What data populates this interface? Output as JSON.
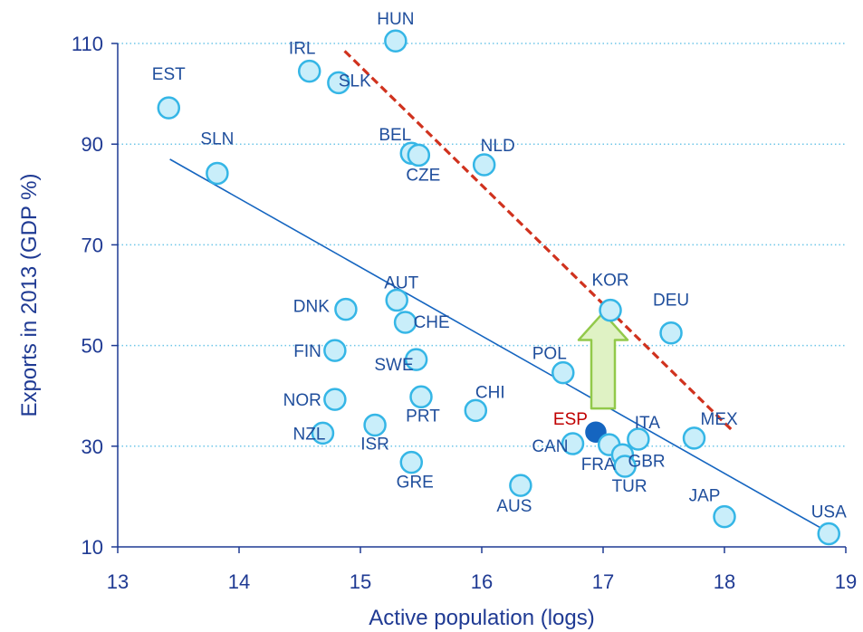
{
  "chart_data": {
    "type": "scatter",
    "xlabel": "Active population (logs)",
    "ylabel": "Exports in 2013 (GDP %)",
    "xlim": [
      13,
      19
    ],
    "ylim": [
      10,
      110
    ],
    "xticks": [
      13,
      14,
      15,
      16,
      17,
      18,
      19
    ],
    "yticks": [
      10,
      30,
      50,
      70,
      90,
      110
    ],
    "grid": "horizontal dotted",
    "colors": {
      "marker_fill": "#c9eefa",
      "marker_stroke": "#35b6e6",
      "highlight_fill": "#1565c0",
      "label": "#1f4e9c",
      "highlight_label": "#c00000",
      "axis_text": "#1f3a93",
      "trend_line": "#1565c0",
      "upper_line": "#d0321e",
      "arrow_fill": "#dff2c4",
      "arrow_stroke": "#92c94a",
      "grid": "#6ec6e8"
    },
    "points": [
      {
        "label": "HUN",
        "x": 15.29,
        "y": 110.5
      },
      {
        "label": "IRL",
        "x": 14.58,
        "y": 104.5
      },
      {
        "label": "SLK",
        "x": 14.82,
        "y": 102.2
      },
      {
        "label": "EST",
        "x": 13.42,
        "y": 97.2
      },
      {
        "label": "SLN",
        "x": 13.82,
        "y": 84.2
      },
      {
        "label": "BEL",
        "x": 15.42,
        "y": 88.2
      },
      {
        "label": "CZE",
        "x": 15.48,
        "y": 87.8
      },
      {
        "label": "NLD",
        "x": 16.02,
        "y": 85.9
      },
      {
        "label": "KOR",
        "x": 17.06,
        "y": 57.0
      },
      {
        "label": "DEU",
        "x": 17.56,
        "y": 52.5
      },
      {
        "label": "AUT",
        "x": 15.3,
        "y": 59.0
      },
      {
        "label": "DNK",
        "x": 14.88,
        "y": 57.2
      },
      {
        "label": "CHE",
        "x": 15.37,
        "y": 54.6
      },
      {
        "label": "FIN",
        "x": 14.79,
        "y": 49.0
      },
      {
        "label": "SWE",
        "x": 15.46,
        "y": 47.2
      },
      {
        "label": "POL",
        "x": 16.67,
        "y": 44.6
      },
      {
        "label": "NOR",
        "x": 14.79,
        "y": 39.3
      },
      {
        "label": "PRT",
        "x": 15.5,
        "y": 39.8
      },
      {
        "label": "CHI",
        "x": 15.95,
        "y": 37.1
      },
      {
        "label": "NZL",
        "x": 14.69,
        "y": 32.6
      },
      {
        "label": "ISR",
        "x": 15.12,
        "y": 34.2
      },
      {
        "label": "GRE",
        "x": 15.42,
        "y": 26.8
      },
      {
        "label": "ESP",
        "x": 16.94,
        "y": 32.8,
        "highlight": true
      },
      {
        "label": "CAN",
        "x": 16.75,
        "y": 30.5
      },
      {
        "label": "ITA",
        "x": 17.29,
        "y": 31.4
      },
      {
        "label": "FRA",
        "x": 17.05,
        "y": 30.3
      },
      {
        "label": "GBR",
        "x": 17.16,
        "y": 28.3
      },
      {
        "label": "TUR",
        "x": 17.18,
        "y": 26.0
      },
      {
        "label": "MEX",
        "x": 17.75,
        "y": 31.6
      },
      {
        "label": "AUS",
        "x": 16.32,
        "y": 22.2
      },
      {
        "label": "JAP",
        "x": 18.0,
        "y": 16.0
      },
      {
        "label": "USA",
        "x": 18.86,
        "y": 12.6
      }
    ],
    "trend_line": {
      "x": [
        13.43,
        18.85
      ],
      "y": [
        87.0,
        13.0
      ]
    },
    "upper_line": {
      "x": [
        14.87,
        18.07
      ],
      "y": [
        108.5,
        33.0
      ]
    },
    "arrow": {
      "x": 17.0,
      "y_from": 37.5,
      "y_to": 56.5
    }
  }
}
